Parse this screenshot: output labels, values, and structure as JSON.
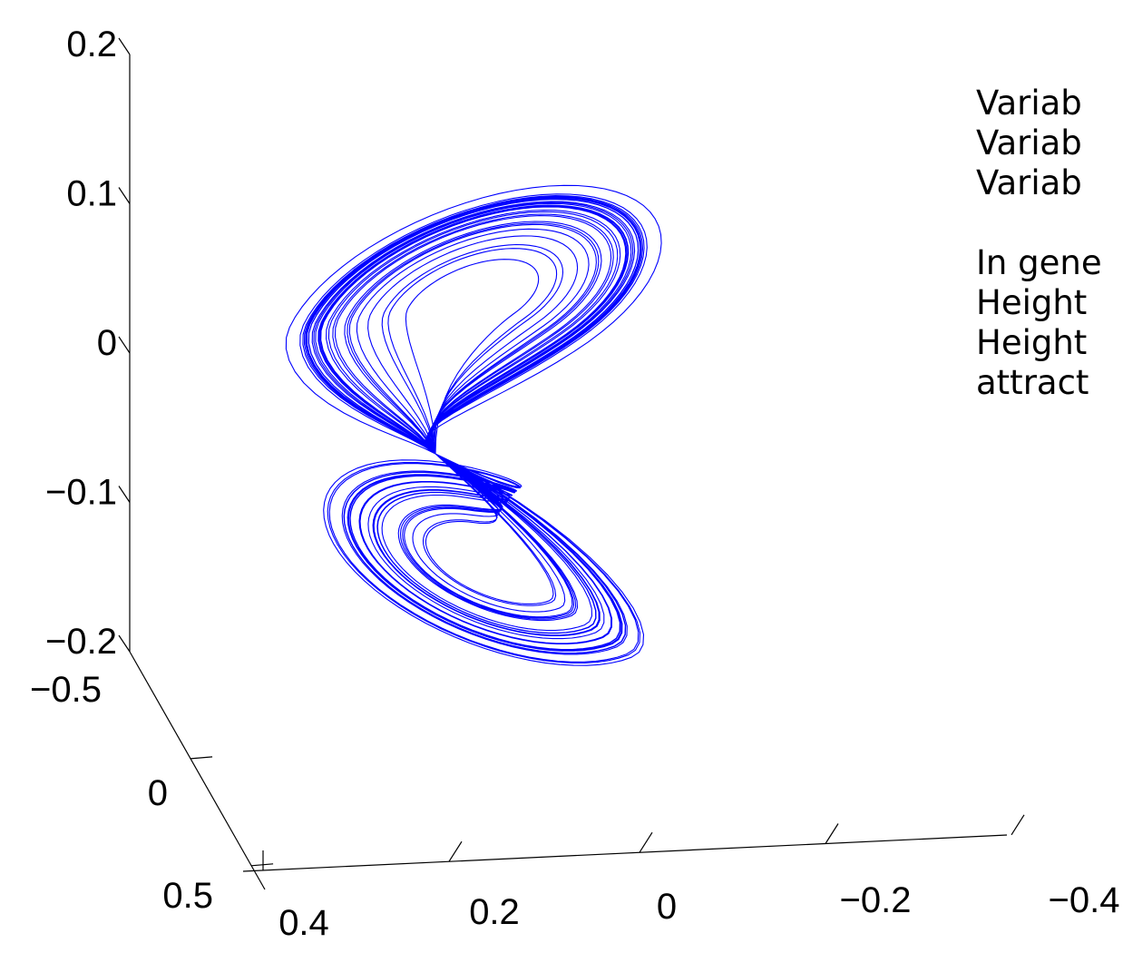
{
  "chart_data": {
    "type": "line",
    "title": "",
    "axes": {
      "vertical": {
        "ticks": [
          "0.2",
          "0.1",
          "0",
          "−0.1",
          "−0.2"
        ],
        "range": [
          -0.2,
          0.2
        ]
      },
      "depth": {
        "ticks": [
          "−0.5",
          "0",
          "0.5"
        ],
        "range": [
          -0.5,
          0.5
        ]
      },
      "horizontal": {
        "ticks": [
          "0.4",
          "0.2",
          "0",
          "−0.2",
          "−0.4"
        ],
        "range": [
          0.4,
          -0.4
        ]
      }
    },
    "series": [
      {
        "color": "#0000ff",
        "description_shape": "two-lobe butterfly attractor trajectory",
        "upper_lobe_center": {
          "h": 0.05,
          "v": 0.02
        },
        "lower_lobe_center": {
          "h": 0.05,
          "v": -0.12
        },
        "turns": 60
      }
    ],
    "grid": false,
    "legend": "none"
  },
  "text_panel": {
    "lines": [
      "Variab",
      "Variab",
      "Variab"
    ],
    "lines2": [
      "In gene",
      "Height",
      "Height",
      "attract"
    ]
  }
}
